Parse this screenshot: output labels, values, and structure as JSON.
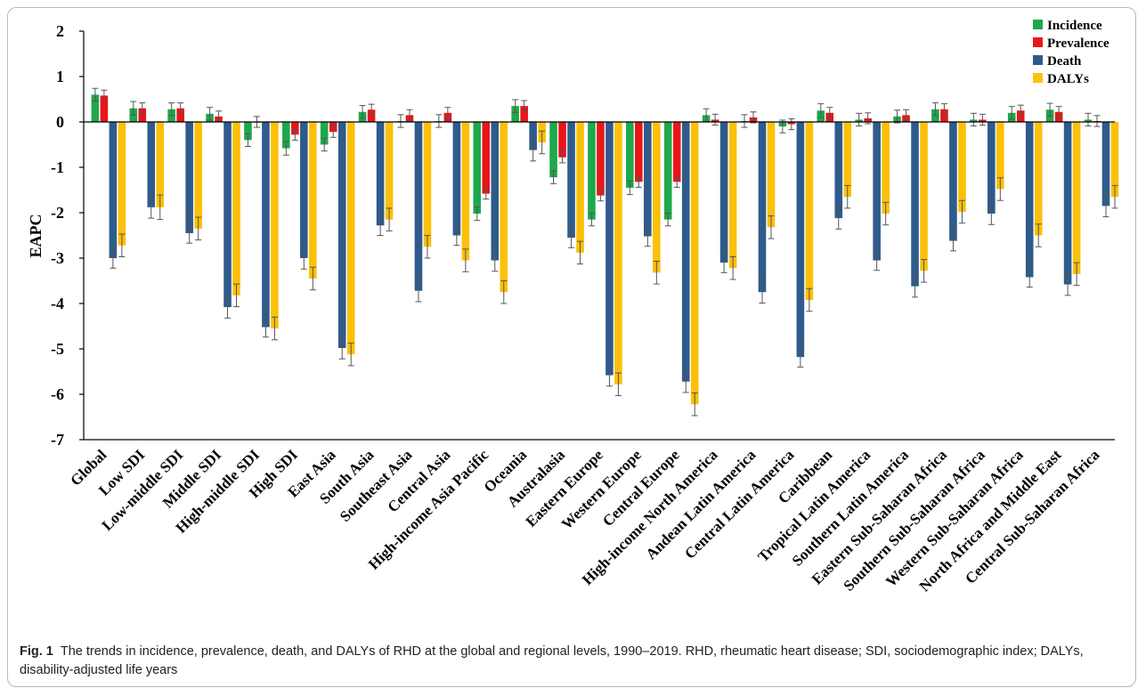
{
  "figure": {
    "label": "Fig. 1",
    "caption": "The trends in incidence, prevalence, death, and DALYs of RHD at the global and regional levels, 1990–2019. RHD, rheumatic heart disease; SDI, sociodemographic index; DALYs, disability-adjusted life years"
  },
  "colors": {
    "incidence": "#1ea84b",
    "prevalence": "#e8161b",
    "death": "#2e5b8c",
    "dalys": "#fcc00a"
  },
  "chart_data": {
    "type": "bar",
    "title": "",
    "xlabel": "",
    "ylabel": "EAPC",
    "ylim": [
      -7,
      2
    ],
    "yticks": [
      "2",
      "1",
      "0",
      "-1",
      "-2",
      "-3",
      "-4",
      "-5",
      "-6",
      "-7"
    ],
    "grid": false,
    "legend_position": "top-right",
    "categories": [
      "Global",
      "Low SDI",
      "Low-middle SDI",
      "Middle SDI",
      "High-middle SDI",
      "High SDI",
      "East Asia",
      "South Asia",
      "Southeast Asia",
      "Central Asia",
      "High-income Asia Pacific",
      "Oceania",
      "Australasia",
      "Eastern Europe",
      "Western Europe",
      "Central Europe",
      "High-income North America",
      "Andean Latin America",
      "Central Latin America",
      "Caribbean",
      "Tropical Latin America",
      "Southern Latin America",
      "Eastern Sub-Saharan Africa",
      "Southern Sub-Saharan Africa",
      "Western Sub-Saharan Africa",
      "North Africa and  Middle East",
      "Central Sub-Saharan Africa"
    ],
    "series": [
      {
        "name": "Incidence",
        "values": [
          0.6,
          0.3,
          0.28,
          0.18,
          -0.4,
          -0.58,
          -0.5,
          0.22,
          0.02,
          0.02,
          -2.02,
          0.35,
          -1.22,
          -2.15,
          -1.45,
          -2.15,
          0.15,
          0.02,
          -0.1,
          0.25,
          0.05,
          0.12,
          0.28,
          0.05,
          0.2,
          0.27,
          0.05
        ]
      },
      {
        "name": "Prevalence",
        "values": [
          0.58,
          0.3,
          0.3,
          0.12,
          0.0,
          -0.28,
          -0.22,
          0.27,
          0.15,
          0.2,
          -1.58,
          0.35,
          -0.78,
          -1.62,
          -1.32,
          -1.32,
          0.05,
          0.1,
          -0.05,
          0.2,
          0.08,
          0.15,
          0.28,
          0.05,
          0.25,
          0.22,
          0.02
        ]
      },
      {
        "name": "Death",
        "values": [
          -3.0,
          -1.88,
          -2.45,
          -4.08,
          -4.52,
          -3.0,
          -4.98,
          -2.28,
          -3.72,
          -2.5,
          -3.05,
          -0.62,
          -2.55,
          -5.58,
          -2.52,
          -5.72,
          -3.1,
          -3.75,
          -5.18,
          -2.12,
          -3.05,
          -3.62,
          -2.62,
          -2.02,
          -3.42,
          -3.58,
          -1.85
        ]
      },
      {
        "name": "DALYs",
        "values": [
          -2.72,
          -1.88,
          -2.35,
          -3.82,
          -4.55,
          -3.45,
          -5.12,
          -2.15,
          -2.75,
          -3.05,
          -3.75,
          -0.45,
          -2.88,
          -5.78,
          -3.32,
          -6.22,
          -3.22,
          -2.32,
          -3.92,
          -1.65,
          -2.02,
          -3.28,
          -1.98,
          -1.48,
          -2.5,
          -3.35,
          -1.65
        ]
      }
    ],
    "error_bars": [
      [
        0.14,
        0.15,
        0.14,
        0.14,
        0.14,
        0.15,
        0.14,
        0.14,
        0.14,
        0.14,
        0.15,
        0.14,
        0.14,
        0.14,
        0.15,
        0.14,
        0.14,
        0.14,
        0.14,
        0.15,
        0.14,
        0.14,
        0.14,
        0.14,
        0.14,
        0.14,
        0.14
      ],
      [
        0.12,
        0.12,
        0.12,
        0.12,
        0.12,
        0.12,
        0.12,
        0.12,
        0.12,
        0.12,
        0.12,
        0.12,
        0.12,
        0.12,
        0.12,
        0.12,
        0.12,
        0.12,
        0.12,
        0.12,
        0.12,
        0.12,
        0.12,
        0.12,
        0.12,
        0.12,
        0.12
      ],
      [
        0.22,
        0.24,
        0.22,
        0.24,
        0.22,
        0.24,
        0.24,
        0.22,
        0.24,
        0.22,
        0.24,
        0.24,
        0.22,
        0.24,
        0.22,
        0.24,
        0.22,
        0.24,
        0.22,
        0.24,
        0.22,
        0.24,
        0.22,
        0.24,
        0.22,
        0.24,
        0.24
      ],
      [
        0.25,
        0.27,
        0.25,
        0.25,
        0.25,
        0.25,
        0.25,
        0.25,
        0.25,
        0.25,
        0.25,
        0.25,
        0.25,
        0.25,
        0.25,
        0.25,
        0.25,
        0.25,
        0.25,
        0.25,
        0.25,
        0.25,
        0.25,
        0.25,
        0.25,
        0.25,
        0.25
      ]
    ]
  }
}
